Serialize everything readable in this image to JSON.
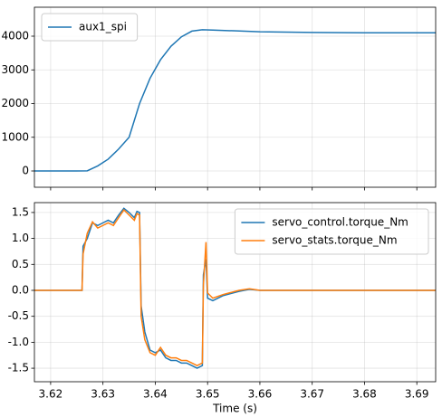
{
  "chart_data": [
    {
      "type": "line",
      "legend": "upper left",
      "grid": true,
      "xlim": [
        3.6169,
        3.6936
      ],
      "xticks": [
        3.62,
        3.63,
        3.64,
        3.65,
        3.66,
        3.67,
        3.68,
        3.69
      ],
      "ylim": [
        -483,
        4859
      ],
      "yticks": [
        0,
        1000,
        2000,
        3000,
        4000
      ],
      "x": [
        3.6169,
        3.62,
        3.625,
        3.627,
        3.629,
        3.631,
        3.633,
        3.635,
        3.637,
        3.639,
        3.641,
        3.643,
        3.645,
        3.647,
        3.649,
        3.651,
        3.655,
        3.66,
        3.67,
        3.68,
        3.69,
        3.6936
      ],
      "series": [
        {
          "name": "aux1_spi",
          "color": "#1f77b4",
          "values": [
            0,
            0,
            0,
            5,
            150,
            350,
            650,
            1000,
            2000,
            2750,
            3300,
            3700,
            3980,
            4150,
            4190,
            4180,
            4160,
            4130,
            4110,
            4100,
            4100,
            4100
          ]
        }
      ]
    },
    {
      "type": "line",
      "legend": "upper right",
      "grid": true,
      "xlabel": "Time (s)",
      "xlim": [
        3.6169,
        3.6936
      ],
      "xticks": [
        3.62,
        3.63,
        3.64,
        3.65,
        3.66,
        3.67,
        3.68,
        3.69
      ],
      "ylim": [
        -1.76,
        1.69
      ],
      "yticks": [
        -1.5,
        {
          "value": -1,
          "label": "-1.0"
        },
        -0.5,
        {
          "value": 0,
          "label": "0.0"
        },
        0.5,
        {
          "value": 1,
          "label": "1.0"
        },
        1.5
      ],
      "x": [
        3.6169,
        3.626,
        3.6262,
        3.627,
        3.628,
        3.629,
        3.63,
        3.631,
        3.632,
        3.633,
        3.634,
        3.635,
        3.636,
        3.6365,
        3.637,
        3.6373,
        3.638,
        3.639,
        3.64,
        3.641,
        3.642,
        3.643,
        3.644,
        3.645,
        3.646,
        3.647,
        3.648,
        3.649,
        3.6492,
        3.6497,
        3.65,
        3.651,
        3.653,
        3.656,
        3.658,
        3.66,
        3.67,
        3.68,
        3.69,
        3.6936
      ],
      "series": [
        {
          "name": "servo_control.torque_Nm",
          "color": "#1f77b4",
          "values": [
            0,
            0,
            0.85,
            1.0,
            1.3,
            1.25,
            1.3,
            1.35,
            1.3,
            1.45,
            1.58,
            1.5,
            1.4,
            1.52,
            1.5,
            -0.3,
            -0.8,
            -1.15,
            -1.2,
            -1.15,
            -1.3,
            -1.35,
            -1.35,
            -1.4,
            -1.4,
            -1.45,
            -1.5,
            -1.45,
            0.3,
            0.6,
            -0.15,
            -0.2,
            -0.1,
            -0.02,
            0.02,
            0,
            0,
            0,
            0,
            0
          ]
        },
        {
          "name": "servo_stats.torque_Nm",
          "color": "#ff7f0e",
          "values": [
            0,
            0,
            0.7,
            1.1,
            1.32,
            1.2,
            1.25,
            1.3,
            1.25,
            1.4,
            1.55,
            1.45,
            1.35,
            1.48,
            1.45,
            -0.5,
            -0.95,
            -1.2,
            -1.25,
            -1.1,
            -1.25,
            -1.3,
            -1.3,
            -1.35,
            -1.35,
            -1.4,
            -1.45,
            -1.4,
            0.1,
            0.93,
            -0.05,
            -0.15,
            -0.08,
            0,
            0.03,
            0,
            0,
            0,
            0,
            0
          ]
        }
      ]
    }
  ]
}
